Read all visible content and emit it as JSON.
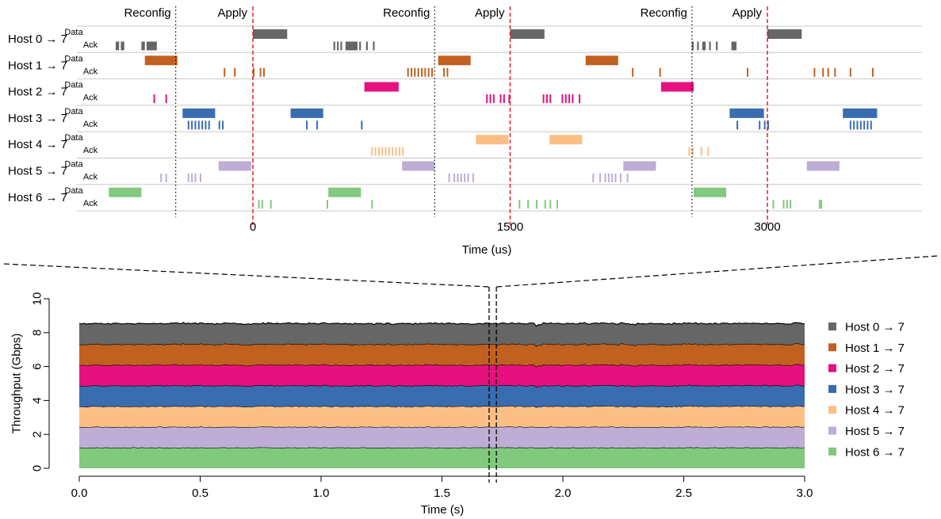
{
  "chart_data": [
    {
      "type": "timeline",
      "xlabel": "Time (us)",
      "xticks": [
        0,
        1500,
        3000
      ],
      "xlim": [
        -850,
        3900
      ],
      "event_labels": {
        "reconfig": "Reconfig",
        "apply": "Apply"
      },
      "reconfig_times": [
        -450,
        1060,
        2560
      ],
      "apply_times": [
        0,
        1500,
        3000
      ],
      "rows": [
        {
          "label": "Host 0 → 7",
          "color": "#666666",
          "data": [
            [
              0,
              200
            ],
            [
              1500,
              1700
            ],
            [
              3000,
              3200
            ]
          ],
          "ack": [
            [
              -800,
              -780
            ],
            [
              -770,
              -750
            ],
            [
              -650,
              -630
            ],
            [
              -620,
              -560
            ],
            [
              470,
              480
            ],
            [
              490,
              500
            ],
            [
              510,
              520
            ],
            [
              540,
              610
            ],
            [
              620,
              630
            ],
            [
              660,
              670
            ],
            [
              700,
              710
            ],
            [
              2560,
              2570
            ],
            [
              2590,
              2600
            ],
            [
              2620,
              2640
            ],
            [
              2660,
              2670
            ],
            [
              2700,
              2710
            ],
            [
              2790,
              2820
            ]
          ]
        },
        {
          "label": "Host 1 → 7",
          "color": "#C1611F",
          "data": [
            [
              -630,
              -440
            ],
            [
              1080,
              1270
            ],
            [
              1940,
              2130
            ]
          ],
          "ack": [
            [
              -170,
              -165
            ],
            [
              -110,
              -105
            ],
            [
              0,
              5
            ],
            [
              40,
              45
            ],
            [
              60,
              65
            ],
            [
              900,
              905
            ],
            [
              920,
              925
            ],
            [
              940,
              945
            ],
            [
              960,
              965
            ],
            [
              980,
              985
            ],
            [
              1000,
              1005
            ],
            [
              1020,
              1025
            ],
            [
              1040,
              1045
            ],
            [
              1110,
              1115
            ],
            [
              1130,
              1135
            ],
            [
              2210,
              2215
            ],
            [
              2370,
              2375
            ],
            [
              2880,
              2885
            ],
            [
              3270,
              3275
            ],
            [
              3320,
              3325
            ],
            [
              3350,
              3355
            ],
            [
              3390,
              3395
            ],
            [
              3480,
              3485
            ],
            [
              3610,
              3615
            ]
          ]
        },
        {
          "label": "Host 2 → 7",
          "color": "#E7107F",
          "data": [
            [
              650,
              850
            ],
            [
              2380,
              2570
            ]
          ],
          "ack": [
            [
              -580,
              -575
            ],
            [
              -510,
              -505
            ],
            [
              1360,
              1365
            ],
            [
              1380,
              1385
            ],
            [
              1400,
              1405
            ],
            [
              1440,
              1445
            ],
            [
              1460,
              1465
            ],
            [
              1490,
              1495
            ],
            [
              1690,
              1695
            ],
            [
              1710,
              1715
            ],
            [
              1730,
              1735
            ],
            [
              1800,
              1805
            ],
            [
              1820,
              1825
            ],
            [
              1840,
              1845
            ],
            [
              1860,
              1865
            ],
            [
              1900,
              1905
            ]
          ]
        },
        {
          "label": "Host 3 → 7",
          "color": "#3A6DB0",
          "data": [
            [
              -410,
              -220
            ],
            [
              220,
              410
            ],
            [
              2780,
              2980
            ],
            [
              3440,
              3640
            ]
          ],
          "ack": [
            [
              -380,
              -375
            ],
            [
              -360,
              -355
            ],
            [
              -340,
              -335
            ],
            [
              -320,
              -315
            ],
            [
              -300,
              -295
            ],
            [
              -280,
              -275
            ],
            [
              -260,
              -255
            ],
            [
              -200,
              -195
            ],
            [
              -180,
              -175
            ],
            [
              310,
              315
            ],
            [
              370,
              375
            ],
            [
              630,
              635
            ],
            [
              2820,
              2825
            ],
            [
              2950,
              2955
            ],
            [
              2980,
              2985
            ],
            [
              3000,
              3005
            ],
            [
              3480,
              3485
            ],
            [
              3500,
              3505
            ],
            [
              3520,
              3525
            ],
            [
              3540,
              3545
            ],
            [
              3560,
              3565
            ],
            [
              3580,
              3585
            ],
            [
              3600,
              3605
            ]
          ]
        },
        {
          "label": "Host 4 → 7",
          "color": "#FBBF85",
          "data": [
            [
              1300,
              1490
            ],
            [
              1730,
              1920
            ]
          ],
          "ack": [
            [
              690,
              695
            ],
            [
              710,
              715
            ],
            [
              730,
              735
            ],
            [
              750,
              755
            ],
            [
              770,
              775
            ],
            [
              790,
              795
            ],
            [
              810,
              815
            ],
            [
              830,
              835
            ],
            [
              850,
              855
            ],
            [
              870,
              875
            ],
            [
              2540,
              2545
            ],
            [
              2560,
              2565
            ],
            [
              2610,
              2615
            ],
            [
              2650,
              2655
            ]
          ]
        },
        {
          "label": "Host 5 → 7",
          "color": "#BEADD5",
          "data": [
            [
              -200,
              -10
            ],
            [
              870,
              1060
            ],
            [
              2160,
              2350
            ],
            [
              3230,
              3420
            ]
          ],
          "ack": [
            [
              -540,
              -535
            ],
            [
              -510,
              -505
            ],
            [
              -380,
              -375
            ],
            [
              -360,
              -355
            ],
            [
              -340,
              -335
            ],
            [
              -310,
              -305
            ],
            [
              1140,
              1145
            ],
            [
              1170,
              1175
            ],
            [
              1190,
              1195
            ],
            [
              1210,
              1215
            ],
            [
              1230,
              1235
            ],
            [
              1250,
              1255
            ],
            [
              1280,
              1285
            ],
            [
              1980,
              1985
            ],
            [
              2020,
              2025
            ],
            [
              2050,
              2055
            ],
            [
              2070,
              2075
            ],
            [
              2090,
              2095
            ],
            [
              2110,
              2115
            ],
            [
              2140,
              2145
            ],
            [
              2180,
              2185
            ]
          ]
        },
        {
          "label": "Host 6 → 7",
          "color": "#80C97D",
          "data": [
            [
              -840,
              -650
            ],
            [
              440,
              630
            ],
            [
              2570,
              2760
            ]
          ],
          "ack": [
            [
              30,
              35
            ],
            [
              50,
              55
            ],
            [
              100,
              105
            ],
            [
              430,
              435
            ],
            [
              690,
              695
            ],
            [
              1550,
              1555
            ],
            [
              1600,
              1605
            ],
            [
              1650,
              1655
            ],
            [
              1700,
              1705
            ],
            [
              1730,
              1735
            ],
            [
              1770,
              1775
            ],
            [
              3030,
              3035
            ],
            [
              3090,
              3095
            ],
            [
              3110,
              3115
            ],
            [
              3130,
              3135
            ],
            [
              3300,
              3305
            ],
            [
              3310,
              3315
            ]
          ]
        }
      ],
      "row_sublabels": [
        "Data",
        "Ack"
      ]
    },
    {
      "type": "area",
      "stacked": true,
      "xlabel": "Time (s)",
      "ylabel": "Throughput (Gbps)",
      "xlim": [
        0,
        3.0
      ],
      "ylim": [
        0,
        10
      ],
      "xticks": [
        0.0,
        0.5,
        1.0,
        1.5,
        2.0,
        2.5,
        3.0
      ],
      "yticks": [
        0,
        2,
        4,
        6,
        8,
        10
      ],
      "zoom_window": [
        1.695,
        1.725
      ],
      "dip": {
        "x": 1.9,
        "depth": 0.12
      },
      "legend_position": "right",
      "series": [
        {
          "name": "Host 0 → 7",
          "color": "#666666",
          "value": 1.22
        },
        {
          "name": "Host 1 → 7",
          "color": "#C1611F",
          "value": 1.22
        },
        {
          "name": "Host 2 → 7",
          "color": "#E7107F",
          "value": 1.22
        },
        {
          "name": "Host 3 → 7",
          "color": "#3A6DB0",
          "value": 1.22
        },
        {
          "name": "Host 4 → 7",
          "color": "#FBBF85",
          "value": 1.22
        },
        {
          "name": "Host 5 → 7",
          "color": "#BEADD5",
          "value": 1.22
        },
        {
          "name": "Host 6 → 7",
          "color": "#80C97D",
          "value": 1.22
        }
      ]
    }
  ]
}
